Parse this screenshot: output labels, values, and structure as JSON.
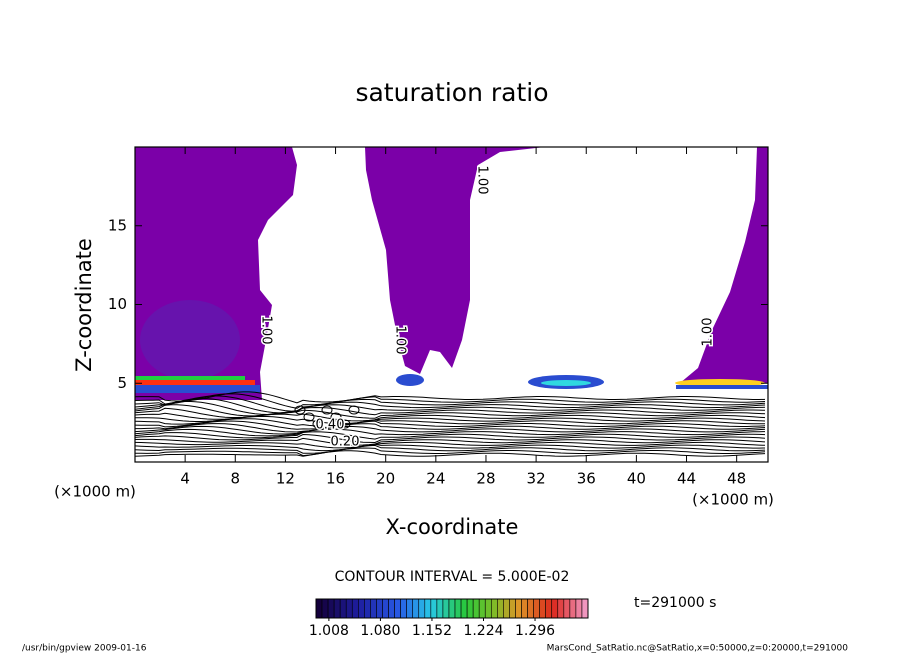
{
  "chart_data": {
    "type": "contour",
    "title": "saturation ratio",
    "x_label": "X-coordinate",
    "y_label": "Z-coordinate",
    "x_unit_left": "(×1000 m)",
    "x_unit_right": "(×1000 m)",
    "xlim": [
      0,
      50.5
    ],
    "xticks": [
      4,
      8,
      12,
      16,
      20,
      24,
      28,
      32,
      36,
      40,
      44,
      48
    ],
    "ylim": [
      0,
      20
    ],
    "yticks": [
      5,
      10,
      15
    ],
    "fill_color": "#7b00a8",
    "contour_labels": [
      "1.00",
      "1.00",
      "1.00",
      "1.00",
      "0.20",
      "0.40"
    ],
    "contour_interval": "CONTOUR INTERVAL = 5.000E-02",
    "colorbar": {
      "clim": [
        0.99,
        1.37
      ],
      "ticks": [
        1.008,
        {
          "value": 1.08,
          "label": "1.080"
        },
        1.152,
        1.224,
        1.296
      ]
    },
    "time_label": "t=291000 s",
    "footer_left": "/usr/bin/gpview   2009-01-16",
    "footer_right": "MarsCond_SatRatio.nc@SatRatio,x=0:50000,z=0:20000,t=291000"
  }
}
